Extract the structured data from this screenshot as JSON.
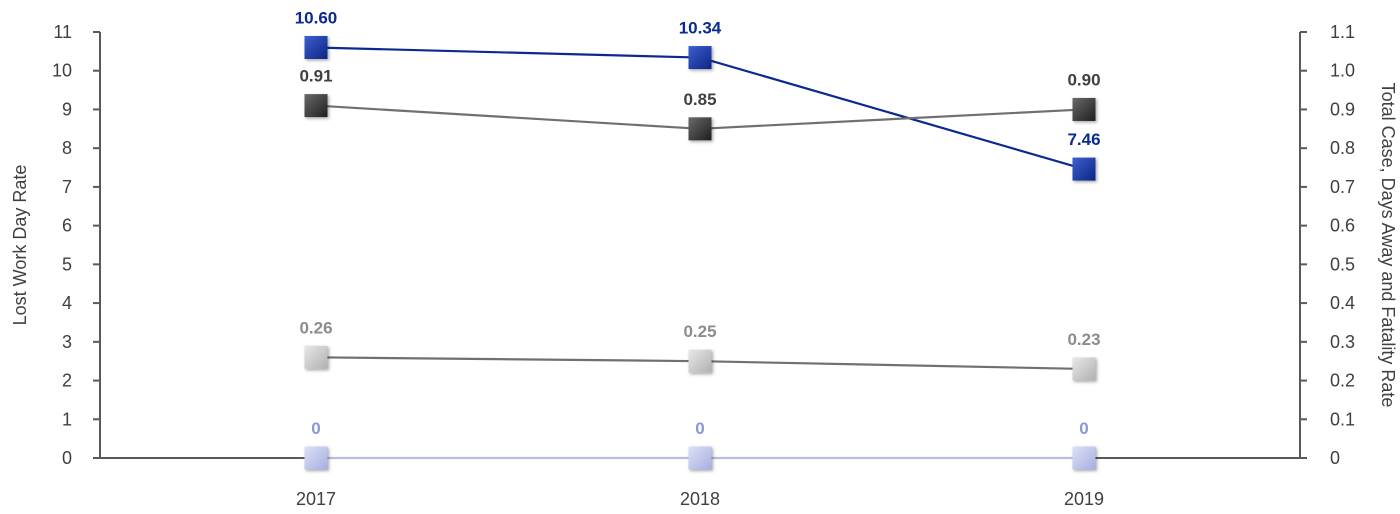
{
  "chart_data": {
    "type": "line",
    "categories": [
      "2017",
      "2018",
      "2019"
    ],
    "left_axis": {
      "label": "Lost Work Day Rate",
      "min": 0,
      "max": 11,
      "ticks": [
        "0",
        "1",
        "2",
        "3",
        "4",
        "5",
        "6",
        "7",
        "8",
        "9",
        "10",
        "11"
      ]
    },
    "right_axis": {
      "label": "Total Case, Days Away and Fatality Rate",
      "min": 0,
      "max": 1.1,
      "ticks": [
        "0",
        "0.1",
        "0.2",
        "0.3",
        "0.4",
        "0.5",
        "0.6",
        "0.7",
        "0.8",
        "0.9",
        "1.0",
        "1.1"
      ]
    },
    "series": [
      {
        "axis": "left",
        "values": [
          10.6,
          10.34,
          7.46
        ],
        "labels": [
          "10.60",
          "10.34",
          "7.46"
        ],
        "line_color": "#0b2a8f",
        "marker_color": "#0b2a8f",
        "label_color": "#0b2a8f"
      },
      {
        "axis": "right",
        "values": [
          0.91,
          0.85,
          0.9
        ],
        "labels": [
          "0.91",
          "0.85",
          "0.90"
        ],
        "line_color": "#707070",
        "marker_color": "#3a3a3a",
        "label_color": "#404040"
      },
      {
        "axis": "right",
        "values": [
          0.26,
          0.25,
          0.23
        ],
        "labels": [
          "0.26",
          "0.25",
          "0.23"
        ],
        "line_color": "#707070",
        "marker_color": "#c8c8c8",
        "label_color": "#8c8c8c"
      },
      {
        "axis": "right",
        "values": [
          0,
          0,
          0
        ],
        "labels": [
          "0",
          "0",
          "0"
        ],
        "line_color": "#b4bde6",
        "marker_color": "#b4bde6",
        "label_color": "#8a98d8"
      }
    ],
    "grid": false,
    "legend": "none"
  }
}
